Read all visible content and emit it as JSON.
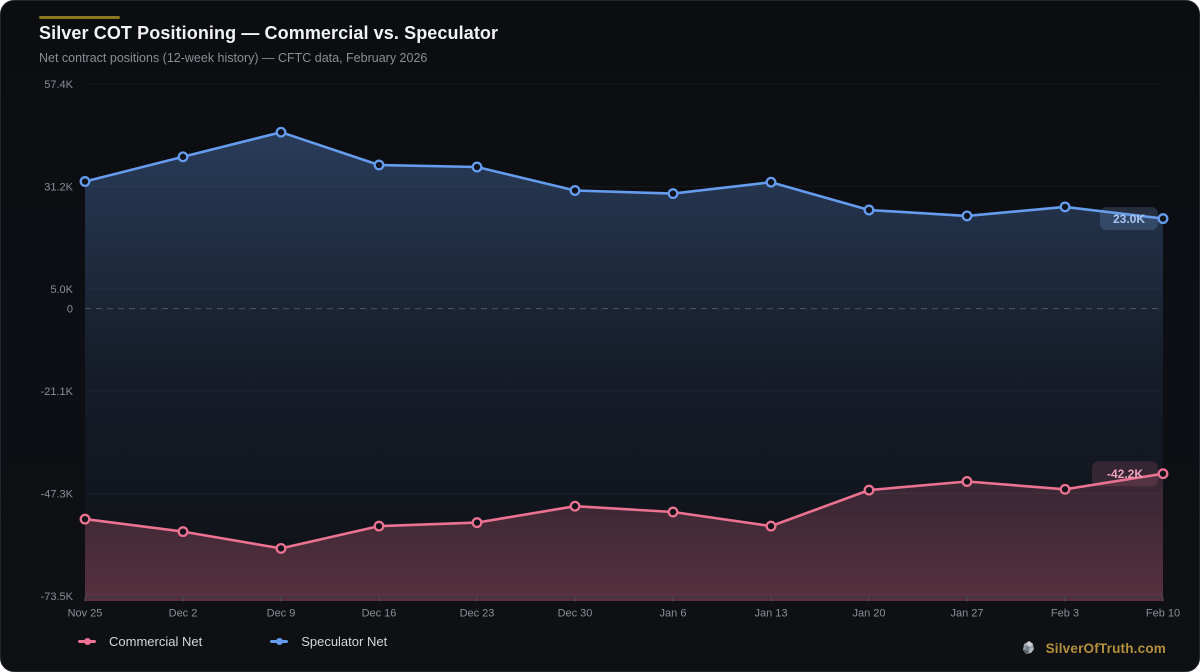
{
  "header": {
    "accent_color": "#8e7623"
  },
  "chart_data": {
    "type": "line",
    "title": "Silver COT Positioning — Commercial vs. Speculator",
    "subtitle": "Net contract positions (12-week history) — CFTC data, February 2026",
    "categories": [
      "Nov 25",
      "Dec 2",
      "Dec 9",
      "Dec 16",
      "Dec 23",
      "Dec 30",
      "Jan 6",
      "Jan 13",
      "Jan 20",
      "Jan 27",
      "Feb 3",
      "Feb 10"
    ],
    "unit": "contracts (thousands)",
    "series": [
      {
        "name": "Commercial Net",
        "color": "#eb7391",
        "values_k": [
          -53.8,
          -57.0,
          -61.3,
          -55.6,
          -54.7,
          -50.5,
          -52.0,
          -55.6,
          -46.4,
          -44.2,
          -46.2,
          -42.2
        ],
        "end_label": "-42.2K",
        "badge": {
          "bg": "rgba(232,120,150,0.16)",
          "text_color": "#f0a3ba",
          "w": 66,
          "h": 25
        }
      },
      {
        "name": "Speculator Net",
        "color": "#659ced",
        "values_k": [
          32.5,
          38.8,
          45.1,
          36.7,
          36.2,
          30.2,
          29.4,
          32.3,
          25.2,
          23.7,
          26.0,
          23.0
        ],
        "end_label": "23.0K",
        "badge": {
          "bg": "rgba(124,162,224,0.22)",
          "text_color": "#a6c6f3",
          "w": 58,
          "h": 23
        }
      }
    ],
    "yticks": [
      {
        "value": 57.4,
        "label": "57.4K"
      },
      {
        "value": 31.2,
        "label": "31.2K"
      },
      {
        "value": 5.0,
        "label": "5.0K"
      },
      {
        "value": -21.1,
        "label": "-21.1K"
      },
      {
        "value": -47.3,
        "label": "-47.3K"
      },
      {
        "value": -73.5,
        "label": "-73.5K"
      }
    ],
    "zero": {
      "value": 0,
      "label": "0",
      "style": "dashed"
    },
    "ylim": [
      -73.5,
      59.5
    ],
    "grid": true,
    "legend_position": "bottom"
  },
  "watermark": {
    "text": "SilverOfTruth.com",
    "color": "#b3903e",
    "icon": "silver-nugget-icon"
  }
}
